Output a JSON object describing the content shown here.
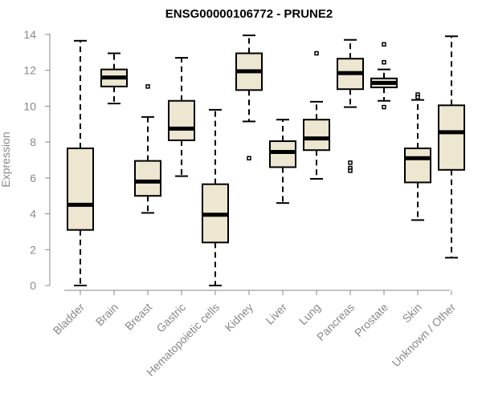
{
  "chart_data": {
    "type": "box",
    "title": "ENSG00000106772 - PRUNE2",
    "xlabel": "",
    "ylabel": "Expression",
    "ylim": [
      0,
      14
    ],
    "yticks": [
      0,
      2,
      4,
      6,
      8,
      10,
      12,
      14
    ],
    "colors": {
      "box_fill": "#ede6d0",
      "box_stroke": "#000000",
      "axis": "#888888"
    },
    "categories": [
      "Bladder",
      "Brain",
      "Breast",
      "Gastric",
      "Hematopoietic cells",
      "Kidney",
      "Liver",
      "Lung",
      "Pancreas",
      "Prostate",
      "Skin",
      "Unknown / Other"
    ],
    "boxes": [
      {
        "min": 0.0,
        "q1": 3.1,
        "median": 4.5,
        "q3": 7.65,
        "max": 13.65,
        "outliers": []
      },
      {
        "min": 10.15,
        "q1": 11.1,
        "median": 11.6,
        "q3": 12.05,
        "max": 12.95,
        "outliers": []
      },
      {
        "min": 4.05,
        "q1": 5.0,
        "median": 5.8,
        "q3": 6.95,
        "max": 9.4,
        "outliers": [
          11.1
        ]
      },
      {
        "min": 6.1,
        "q1": 8.1,
        "median": 8.75,
        "q3": 10.3,
        "max": 12.7,
        "outliers": []
      },
      {
        "min": 0.0,
        "q1": 2.4,
        "median": 3.95,
        "q3": 5.65,
        "max": 9.8,
        "outliers": []
      },
      {
        "min": 9.15,
        "q1": 10.9,
        "median": 11.95,
        "q3": 12.95,
        "max": 13.95,
        "outliers": [
          7.1
        ]
      },
      {
        "min": 4.6,
        "q1": 6.6,
        "median": 7.45,
        "q3": 8.05,
        "max": 9.25,
        "outliers": []
      },
      {
        "min": 5.95,
        "q1": 7.55,
        "median": 8.2,
        "q3": 9.25,
        "max": 10.25,
        "outliers": [
          12.95
        ]
      },
      {
        "min": 9.95,
        "q1": 10.95,
        "median": 11.85,
        "q3": 12.65,
        "max": 13.7,
        "outliers": [
          6.85,
          6.55,
          6.4
        ]
      },
      {
        "min": 10.3,
        "q1": 11.05,
        "median": 11.3,
        "q3": 11.55,
        "max": 12.05,
        "outliers": [
          13.45,
          12.45,
          9.95
        ]
      },
      {
        "min": 3.65,
        "q1": 5.75,
        "median": 7.1,
        "q3": 7.65,
        "max": 10.35,
        "outliers": [
          10.65,
          10.5
        ]
      },
      {
        "min": 1.55,
        "q1": 6.45,
        "median": 8.55,
        "q3": 10.05,
        "max": 13.9,
        "outliers": []
      }
    ]
  }
}
